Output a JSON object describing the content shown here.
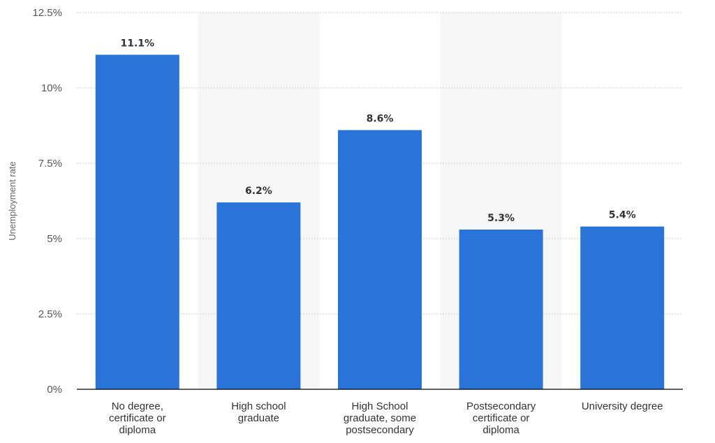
{
  "chart_data": {
    "type": "bar",
    "ylabel": "Unemployment rate",
    "ylim": [
      0,
      12.5
    ],
    "yticks": [
      0,
      2.5,
      5,
      7.5,
      10,
      12.5
    ],
    "ytick_labels": [
      "0%",
      "2.5%",
      "5%",
      "7.5%",
      "10%",
      "12.5%"
    ],
    "categories": [
      [
        "No degree,",
        "certificate or",
        "diploma"
      ],
      [
        "High school",
        "graduate"
      ],
      [
        "High School",
        "graduate, some",
        "postsecondary"
      ],
      [
        "Postsecondary",
        "certificate or",
        "diploma"
      ],
      [
        "University degree"
      ]
    ],
    "values": [
      11.1,
      6.2,
      8.6,
      5.3,
      5.4
    ],
    "data_labels": [
      "11.1%",
      "6.2%",
      "8.6%",
      "5.3%",
      "5.4%"
    ],
    "grid": true,
    "colors": {
      "bar": "#2a74d9",
      "grid": "#cfcfcf",
      "band": "#f6f6f6",
      "axis": "#000000"
    }
  }
}
